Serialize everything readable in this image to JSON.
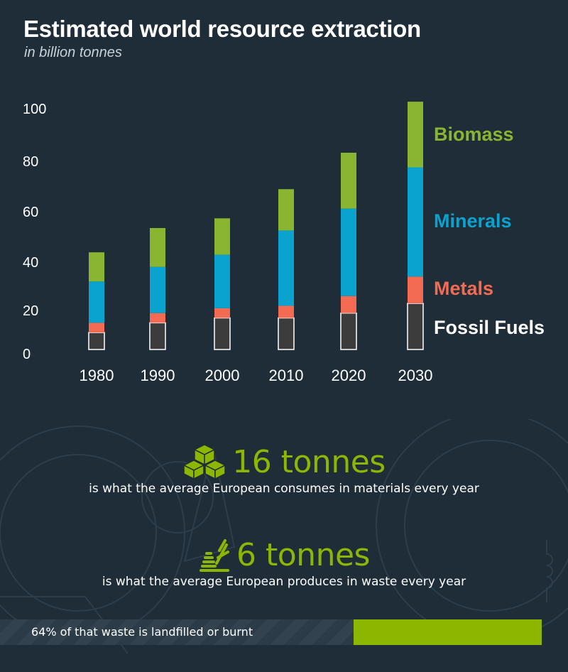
{
  "header": {
    "title": "Estimated world resource extraction",
    "subtitle": "in billion tonnes"
  },
  "chart_data": {
    "type": "bar",
    "stacked": true,
    "title": "Estimated world resource extraction",
    "subtitle": "in billion tonnes",
    "categories": [
      "1980",
      "1990",
      "2000",
      "2010",
      "2020",
      "2030"
    ],
    "yticks": [
      "0",
      "20",
      "40",
      "60",
      "80",
      "100"
    ],
    "ylim": [
      0,
      100
    ],
    "grid": false,
    "legend_placement": "right",
    "series": [
      {
        "name": "Fossil Fuels",
        "color": "#3c3c3c",
        "values": [
          7,
          11,
          13,
          13,
          15,
          19
        ]
      },
      {
        "name": "Metals",
        "color": "#f26b52",
        "values": [
          4,
          4,
          4,
          5,
          7,
          11
        ]
      },
      {
        "name": "Minerals",
        "color": "#0aa3cf",
        "values": [
          17,
          19,
          22,
          31,
          36,
          45
        ]
      },
      {
        "name": "Biomass",
        "color": "#8ab530",
        "values": [
          12,
          16,
          15,
          17,
          23,
          27
        ]
      }
    ]
  },
  "stats": [
    {
      "value": "16 tonnes",
      "caption": "is what the average European consumes in materials every year",
      "icon": "cubes-icon"
    },
    {
      "value": "6 tonnes",
      "caption": "is what the average European produces in waste every year",
      "icon": "waste-pile-icon"
    }
  ],
  "waste_bar": {
    "label": "64% of that waste is landfilled or burnt",
    "percent": 64,
    "fill_color": "#8db600"
  }
}
